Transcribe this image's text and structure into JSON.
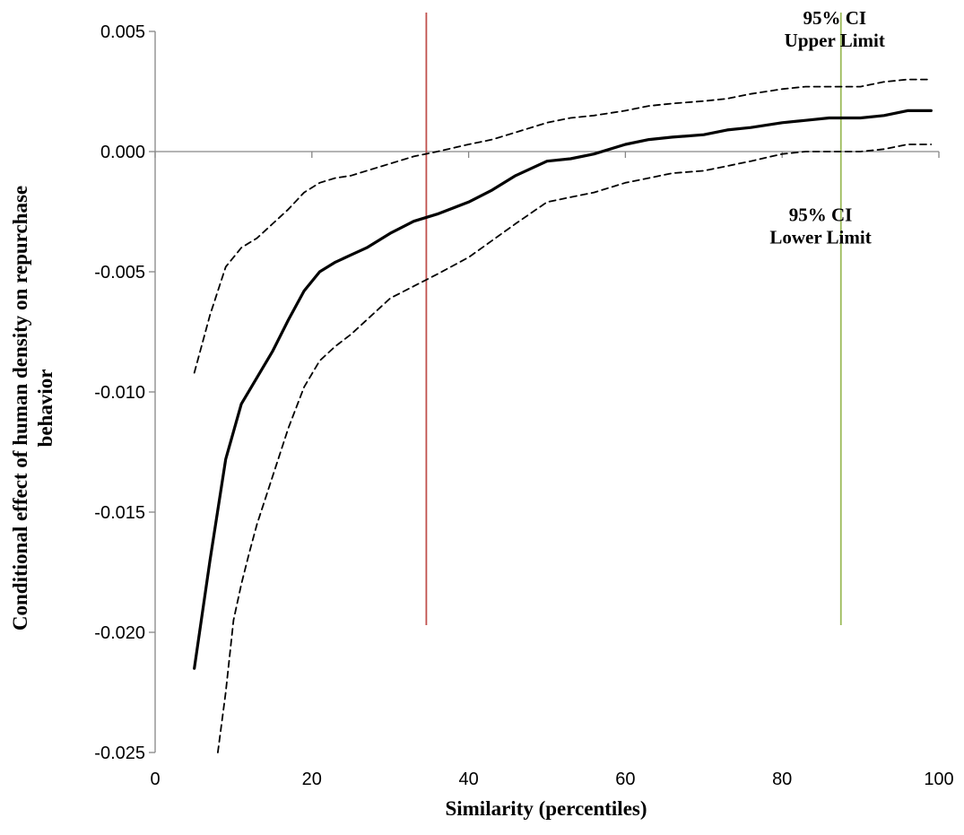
{
  "chart_data": {
    "type": "line",
    "xlabel": "Similarity (percentiles)",
    "ylabel": "Conditional effect of human density on repurchase behavior",
    "ylabel_lines": [
      "Conditional effect of human density on repurchase",
      "behavior"
    ],
    "xlim": [
      0,
      100
    ],
    "ylim": [
      -0.025,
      0.005
    ],
    "x_ticks": [
      0,
      20,
      40,
      60,
      80,
      100
    ],
    "x_tick_labels": [
      "0",
      "20",
      "40",
      "60",
      "80",
      "100"
    ],
    "y_ticks": [
      0.005,
      0.0,
      -0.005,
      -0.01,
      -0.015,
      -0.02,
      -0.025
    ],
    "y_tick_labels": [
      "0.005",
      "0.000",
      "-0.005",
      "-0.010",
      "-0.015",
      "-0.020",
      "-0.025"
    ],
    "series": [
      {
        "role": "estimate",
        "style": "solid",
        "x": [
          5,
          7,
          9,
          11,
          13,
          15,
          17,
          19,
          21,
          23,
          25,
          27,
          30,
          33,
          36,
          40,
          43,
          46,
          50,
          53,
          56,
          60,
          63,
          66,
          70,
          73,
          76,
          80,
          83,
          86,
          90,
          93,
          96,
          99
        ],
        "y": [
          -0.0215,
          -0.017,
          -0.0128,
          -0.0105,
          -0.0094,
          -0.0083,
          -0.007,
          -0.0058,
          -0.005,
          -0.0046,
          -0.0043,
          -0.004,
          -0.0034,
          -0.0029,
          -0.0026,
          -0.0021,
          -0.0016,
          -0.001,
          -0.0004,
          -0.0003,
          -0.0001,
          0.0003,
          0.0005,
          0.0006,
          0.0007,
          0.0009,
          0.001,
          0.0012,
          0.0013,
          0.0014,
          0.0014,
          0.0015,
          0.0017,
          0.0017
        ]
      },
      {
        "role": "upper",
        "style": "dashed",
        "x": [
          5,
          7,
          9,
          11,
          13,
          15,
          17,
          19,
          21,
          23,
          25,
          27,
          30,
          33,
          36,
          40,
          43,
          46,
          50,
          53,
          56,
          60,
          63,
          66,
          70,
          73,
          76,
          80,
          83,
          86,
          90,
          93,
          96,
          99
        ],
        "y": [
          -0.0092,
          -0.0068,
          -0.0048,
          -0.004,
          -0.0036,
          -0.003,
          -0.0024,
          -0.0017,
          -0.0013,
          -0.0011,
          -0.001,
          -0.0008,
          -0.0005,
          -0.0002,
          0.0,
          0.0003,
          0.0005,
          0.0008,
          0.0012,
          0.0014,
          0.0015,
          0.0017,
          0.0019,
          0.002,
          0.0021,
          0.0022,
          0.0024,
          0.0026,
          0.0027,
          0.0027,
          0.0027,
          0.0029,
          0.003,
          0.003
        ]
      },
      {
        "role": "lower",
        "style": "dashed",
        "x": [
          8,
          9,
          10,
          11,
          12,
          13,
          15,
          17,
          19,
          21,
          23,
          25,
          27,
          30,
          33,
          36,
          40,
          43,
          46,
          50,
          53,
          56,
          60,
          63,
          66,
          70,
          73,
          76,
          80,
          83,
          86,
          90,
          93,
          96,
          99
        ],
        "y": [
          -0.025,
          -0.0225,
          -0.0195,
          -0.018,
          -0.0167,
          -0.0155,
          -0.0135,
          -0.0115,
          -0.0098,
          -0.0087,
          -0.0081,
          -0.0076,
          -0.007,
          -0.0061,
          -0.0056,
          -0.0051,
          -0.0044,
          -0.0037,
          -0.003,
          -0.0021,
          -0.0019,
          -0.0017,
          -0.0013,
          -0.0011,
          -0.0009,
          -0.0008,
          -0.0006,
          -0.0004,
          -0.0001,
          0.0,
          0.0,
          0.0,
          0.0001,
          0.0003,
          0.0003
        ]
      }
    ],
    "reference_lines": [
      {
        "x": 34.6,
        "y_from": 0.006,
        "y_to": -0.0197,
        "color": "#c0504d"
      },
      {
        "x": 87.5,
        "y_from": 0.006,
        "y_to": -0.0197,
        "color": "#9bbb59"
      }
    ],
    "annotations": [
      {
        "lines": [
          "95% CI",
          "Upper Limit"
        ],
        "x": 86.7,
        "y": 0.0053
      },
      {
        "lines": [
          "95% CI",
          "Lower Limit"
        ],
        "x": 84.9,
        "y": -0.0029
      }
    ],
    "grid": false
  }
}
